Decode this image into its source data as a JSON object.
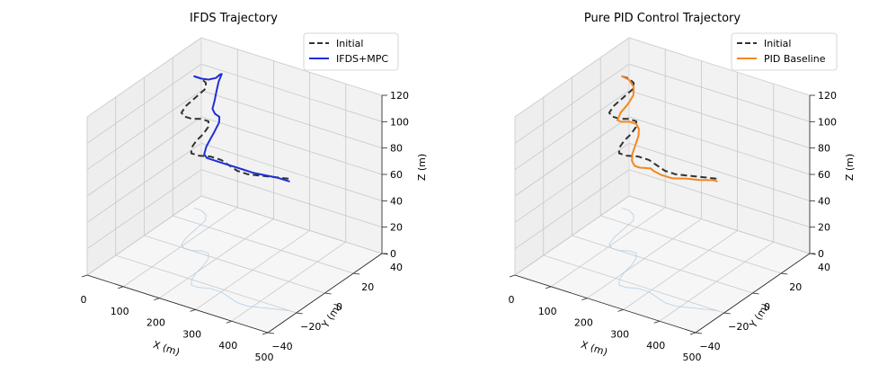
{
  "chart_data": [
    {
      "type": "line3d",
      "title": "IFDS Trajectory",
      "xlabel": "X (m)",
      "ylabel": "Y (m)",
      "zlabel": "Z (m)",
      "xlim": [
        0,
        500
      ],
      "ylim": [
        -40,
        40
      ],
      "zlim": [
        0,
        120
      ],
      "xticks": [
        0,
        100,
        200,
        300,
        400,
        500
      ],
      "yticks": [
        -40,
        -20,
        0,
        20,
        40
      ],
      "zticks": [
        0,
        20,
        40,
        60,
        80,
        100,
        120
      ],
      "legend_position": "top-right",
      "series": [
        {
          "name": "Initial",
          "color": "#333333",
          "style": "dashed",
          "x": [
            20,
            40,
            60,
            75,
            80,
            85,
            95,
            110,
            130,
            150,
            170,
            185,
            195,
            200,
            210,
            225,
            245,
            270,
            300,
            330,
            360,
            390,
            420,
            450,
            480
          ],
          "y": [
            30,
            30,
            28,
            24,
            16,
            8,
            2,
            0,
            0,
            2,
            2,
            -2,
            -8,
            -14,
            -20,
            -24,
            -24,
            -22,
            -22,
            -24,
            -26,
            -26,
            -24,
            -22,
            -20
          ],
          "z": [
            100,
            100,
            100,
            100,
            100,
            100,
            100,
            100,
            100,
            100,
            100,
            100,
            100,
            100,
            100,
            100,
            100,
            100,
            100,
            100,
            100,
            100,
            100,
            100,
            100
          ]
        },
        {
          "name": "IFDS+MPC",
          "color": "#1f2fd6",
          "style": "solid",
          "x": [
            20,
            40,
            60,
            80,
            100,
            120,
            135,
            145,
            155,
            165,
            180,
            200,
            215,
            225,
            230,
            235,
            245,
            260,
            280,
            300,
            330,
            360,
            390,
            420,
            450,
            480
          ],
          "y": [
            30,
            30,
            30,
            30,
            28,
            24,
            18,
            14,
            10,
            6,
            4,
            2,
            -2,
            -8,
            -12,
            -16,
            -20,
            -22,
            -22,
            -22,
            -22,
            -22,
            -22,
            -21,
            -20,
            -20
          ],
          "z": [
            100,
            100,
            101,
            104,
            110,
            115,
            115,
            112,
            108,
            106,
            105,
            106,
            106,
            104,
            102,
            100,
            98,
            98,
            98,
            98,
            98,
            98,
            98,
            98,
            98,
            98
          ]
        }
      ]
    },
    {
      "type": "line3d",
      "title": "Pure PID Control Trajectory",
      "xlabel": "X (m)",
      "ylabel": "Y (m)",
      "zlabel": "Z (m)",
      "xlim": [
        0,
        500
      ],
      "ylim": [
        -40,
        40
      ],
      "zlim": [
        0,
        120
      ],
      "xticks": [
        0,
        100,
        200,
        300,
        400,
        500
      ],
      "yticks": [
        -40,
        -20,
        0,
        20,
        40
      ],
      "zticks": [
        0,
        20,
        40,
        60,
        80,
        100,
        120
      ],
      "legend_position": "top-right",
      "series": [
        {
          "name": "Initial",
          "color": "#333333",
          "style": "dashed",
          "x": [
            20,
            40,
            60,
            75,
            80,
            85,
            95,
            110,
            130,
            150,
            170,
            185,
            195,
            200,
            210,
            225,
            245,
            270,
            300,
            330,
            360,
            390,
            420,
            450,
            480
          ],
          "y": [
            30,
            30,
            28,
            24,
            16,
            8,
            2,
            0,
            0,
            2,
            2,
            -2,
            -8,
            -14,
            -20,
            -24,
            -24,
            -22,
            -22,
            -24,
            -26,
            -26,
            -24,
            -22,
            -20
          ],
          "z": [
            100,
            100,
            100,
            100,
            100,
            100,
            100,
            100,
            100,
            100,
            100,
            100,
            100,
            100,
            100,
            100,
            100,
            100,
            100,
            100,
            100,
            100,
            100,
            100,
            100
          ]
        },
        {
          "name": "PID Baseline",
          "color": "#f5871f",
          "style": "solid",
          "x": [
            20,
            40,
            60,
            75,
            85,
            95,
            110,
            130,
            150,
            170,
            185,
            200,
            215,
            230,
            245,
            260,
            275,
            290,
            305,
            320,
            350,
            380,
            410,
            440,
            470,
            480
          ],
          "y": [
            30,
            30,
            28,
            24,
            18,
            10,
            4,
            2,
            2,
            2,
            0,
            -4,
            -10,
            -16,
            -20,
            -22,
            -22,
            -22,
            -22,
            -24,
            -26,
            -26,
            -24,
            -22,
            -20,
            -20
          ],
          "z": [
            100,
            99,
            97,
            95,
            94,
            94,
            94,
            96,
            98,
            98,
            97,
            96,
            95,
            94,
            93,
            92,
            92,
            93,
            94,
            95,
            96,
            96,
            97,
            97,
            98,
            98
          ]
        }
      ]
    }
  ]
}
